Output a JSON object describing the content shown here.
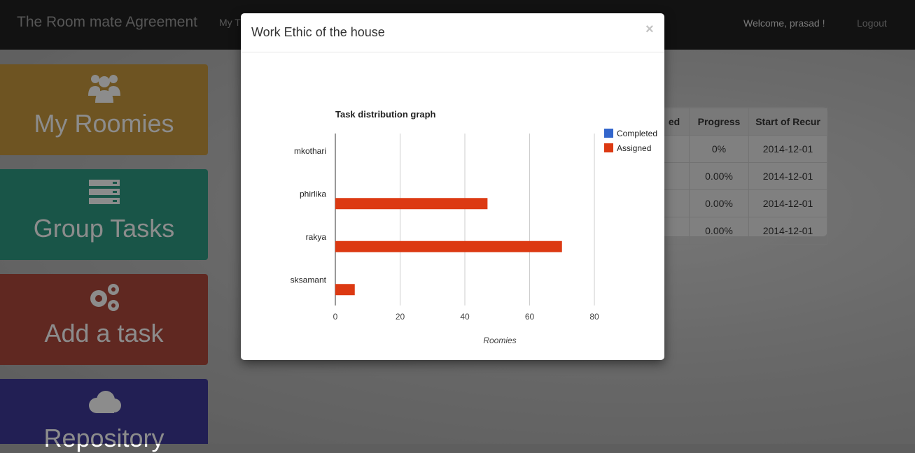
{
  "navbar": {
    "brand": "The Room mate Agreement",
    "link": "My T",
    "welcome": "Welcome, prasad !",
    "logout": "Logout"
  },
  "tiles": [
    {
      "label": "My Roomies",
      "icon": "users-icon",
      "color": "#c99a3e"
    },
    {
      "label": "Group Tasks",
      "icon": "server-icon",
      "color": "#2f9c83"
    },
    {
      "label": "Add a task",
      "icon": "cogs-icon",
      "color": "#b04a3d"
    },
    {
      "label": "Repository",
      "icon": "cloud-icon",
      "color": "#3f3a99"
    }
  ],
  "table": {
    "headers": [
      "ed",
      "Progress",
      "Start of Recur"
    ],
    "rows": [
      [
        "",
        "0%",
        "2014-12-01"
      ],
      [
        "",
        "0.00%",
        "2014-12-01"
      ],
      [
        "",
        "0.00%",
        "2014-12-01"
      ],
      [
        "",
        "0.00%",
        "2014-12-01"
      ]
    ]
  },
  "modal": {
    "title": "Work Ethic of the house",
    "close": "×"
  },
  "chart_data": {
    "type": "bar",
    "orientation": "horizontal",
    "title": "Task distribution graph",
    "xlabel": "Roomies",
    "ylabel": "",
    "categories": [
      "mkothari",
      "phirlika",
      "rakya",
      "sksamant"
    ],
    "series": [
      {
        "name": "Completed",
        "values": [
          0,
          0,
          0,
          0
        ],
        "color": "#3366cc"
      },
      {
        "name": "Assigned",
        "values": [
          0,
          47,
          70,
          6
        ],
        "color": "#dc3912"
      }
    ],
    "xlim": [
      0,
      80
    ],
    "xticks": [
      0,
      20,
      40,
      60,
      80
    ],
    "grid": true,
    "legend": "right"
  }
}
